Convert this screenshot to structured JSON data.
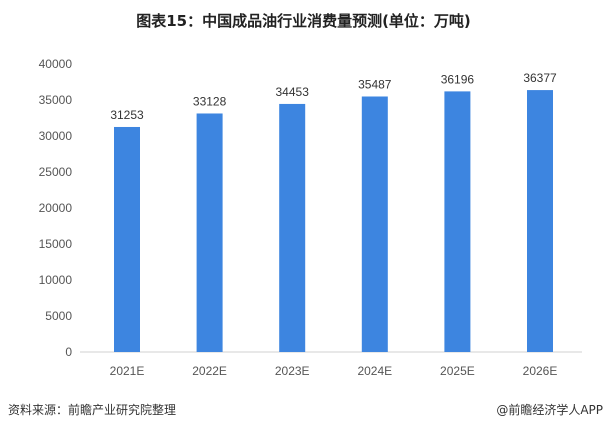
{
  "chart_data": {
    "type": "bar",
    "title": "图表15：中国成品油行业消费量预测(单位：万吨)",
    "categories": [
      "2021E",
      "2022E",
      "2023E",
      "2024E",
      "2025E",
      "2026E"
    ],
    "values": [
      31253,
      33128,
      34453,
      35487,
      36196,
      36377
    ],
    "ylim": [
      0,
      40000
    ],
    "yticks": [
      0,
      5000,
      10000,
      15000,
      20000,
      25000,
      30000,
      35000,
      40000
    ],
    "grid": false,
    "bar_color": "#3d85e0",
    "data_labels": true
  },
  "footer": {
    "source": "资料来源：前瞻产业研究院整理",
    "brand": "@前瞻经济学人APP"
  }
}
